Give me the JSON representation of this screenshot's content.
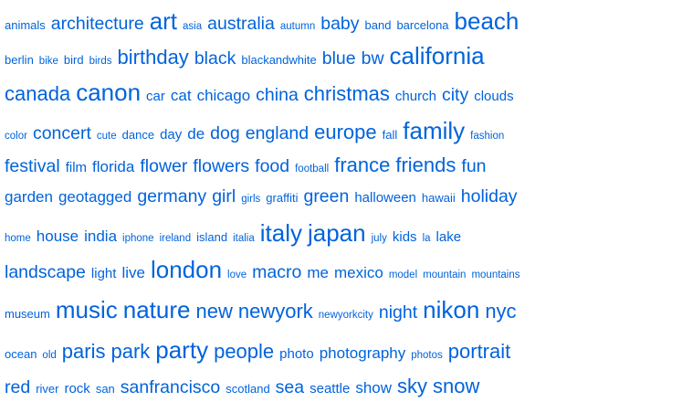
{
  "colors": {
    "tag": "#0063DC",
    "background": "#ffffff"
  },
  "tag_lines": [
    [
      {
        "label": "animals",
        "size": 2
      },
      {
        "label": "architecture",
        "size": 5
      },
      {
        "label": "art",
        "size": 7
      },
      {
        "label": "asia",
        "size": 1
      },
      {
        "label": "australia",
        "size": 5
      },
      {
        "label": "autumn",
        "size": 1
      },
      {
        "label": "baby",
        "size": 5
      },
      {
        "label": "band",
        "size": 2
      },
      {
        "label": "barcelona",
        "size": 2
      },
      {
        "label": "beach",
        "size": 7
      }
    ],
    [
      {
        "label": "berlin",
        "size": 2
      },
      {
        "label": "bike",
        "size": 1
      },
      {
        "label": "bird",
        "size": 2
      },
      {
        "label": "birds",
        "size": 1
      },
      {
        "label": "birthday",
        "size": 6
      },
      {
        "label": "black",
        "size": 5
      },
      {
        "label": "blackandwhite",
        "size": 2
      },
      {
        "label": "blue",
        "size": 5
      },
      {
        "label": "bw",
        "size": 5
      },
      {
        "label": "california",
        "size": 7
      }
    ],
    [
      {
        "label": "canada",
        "size": 6
      },
      {
        "label": "canon",
        "size": 7
      },
      {
        "label": "car",
        "size": 3
      },
      {
        "label": "cat",
        "size": 4
      },
      {
        "label": "chicago",
        "size": 4
      },
      {
        "label": "china",
        "size": 5
      },
      {
        "label": "christmas",
        "size": 6
      },
      {
        "label": "church",
        "size": 3
      },
      {
        "label": "city",
        "size": 5
      },
      {
        "label": "clouds",
        "size": 3
      }
    ],
    [
      {
        "label": "color",
        "size": 1
      },
      {
        "label": "concert",
        "size": 5
      },
      {
        "label": "cute",
        "size": 1
      },
      {
        "label": "dance",
        "size": 2
      },
      {
        "label": "day",
        "size": 3
      },
      {
        "label": "de",
        "size": 4
      },
      {
        "label": "dog",
        "size": 5
      },
      {
        "label": "england",
        "size": 5
      },
      {
        "label": "europe",
        "size": 6
      },
      {
        "label": "fall",
        "size": 2
      },
      {
        "label": "family",
        "size": 7
      },
      {
        "label": "fashion",
        "size": 1
      }
    ],
    [
      {
        "label": "festival",
        "size": 5
      },
      {
        "label": "film",
        "size": 3
      },
      {
        "label": "florida",
        "size": 4
      },
      {
        "label": "flower",
        "size": 5
      },
      {
        "label": "flowers",
        "size": 5
      },
      {
        "label": "food",
        "size": 5
      },
      {
        "label": "football",
        "size": 1
      },
      {
        "label": "france",
        "size": 6
      },
      {
        "label": "friends",
        "size": 6
      },
      {
        "label": "fun",
        "size": 5
      }
    ],
    [
      {
        "label": "garden",
        "size": 4
      },
      {
        "label": "geotagged",
        "size": 4
      },
      {
        "label": "germany",
        "size": 5
      },
      {
        "label": "girl",
        "size": 5
      },
      {
        "label": "girls",
        "size": 1
      },
      {
        "label": "graffiti",
        "size": 2
      },
      {
        "label": "green",
        "size": 5
      },
      {
        "label": "halloween",
        "size": 3
      },
      {
        "label": "hawaii",
        "size": 2
      },
      {
        "label": "holiday",
        "size": 5
      }
    ],
    [
      {
        "label": "home",
        "size": 1
      },
      {
        "label": "house",
        "size": 4
      },
      {
        "label": "india",
        "size": 4
      },
      {
        "label": "iphone",
        "size": 1
      },
      {
        "label": "ireland",
        "size": 1
      },
      {
        "label": "island",
        "size": 2
      },
      {
        "label": "italia",
        "size": 1
      },
      {
        "label": "italy",
        "size": 7
      },
      {
        "label": "japan",
        "size": 7
      },
      {
        "label": "july",
        "size": 1
      },
      {
        "label": "kids",
        "size": 3
      },
      {
        "label": "la",
        "size": 1
      },
      {
        "label": "lake",
        "size": 3
      }
    ],
    [
      {
        "label": "landscape",
        "size": 5
      },
      {
        "label": "light",
        "size": 3
      },
      {
        "label": "live",
        "size": 4
      },
      {
        "label": "london",
        "size": 7
      },
      {
        "label": "love",
        "size": 1
      },
      {
        "label": "macro",
        "size": 5
      },
      {
        "label": "me",
        "size": 4
      },
      {
        "label": "mexico",
        "size": 4
      },
      {
        "label": "model",
        "size": 1
      },
      {
        "label": "mountain",
        "size": 1
      },
      {
        "label": "mountains",
        "size": 1
      }
    ],
    [
      {
        "label": "museum",
        "size": 2
      },
      {
        "label": "music",
        "size": 7
      },
      {
        "label": "nature",
        "size": 7
      },
      {
        "label": "new",
        "size": 6
      },
      {
        "label": "newyork",
        "size": 6
      },
      {
        "label": "newyorkcity",
        "size": 1
      },
      {
        "label": "night",
        "size": 5
      },
      {
        "label": "nikon",
        "size": 7
      },
      {
        "label": "nyc",
        "size": 6
      }
    ],
    [
      {
        "label": "ocean",
        "size": 2
      },
      {
        "label": "old",
        "size": 1
      },
      {
        "label": "paris",
        "size": 6
      },
      {
        "label": "park",
        "size": 6
      },
      {
        "label": "party",
        "size": 7
      },
      {
        "label": "people",
        "size": 6
      },
      {
        "label": "photo",
        "size": 3
      },
      {
        "label": "photography",
        "size": 4
      },
      {
        "label": "photos",
        "size": 1
      },
      {
        "label": "portrait",
        "size": 6
      }
    ],
    [
      {
        "label": "red",
        "size": 5
      },
      {
        "label": "river",
        "size": 2
      },
      {
        "label": "rock",
        "size": 3
      },
      {
        "label": "san",
        "size": 2
      },
      {
        "label": "sanfrancisco",
        "size": 5
      },
      {
        "label": "scotland",
        "size": 2
      },
      {
        "label": "sea",
        "size": 5
      },
      {
        "label": "seattle",
        "size": 3
      },
      {
        "label": "show",
        "size": 4
      },
      {
        "label": "sky",
        "size": 6
      },
      {
        "label": "snow",
        "size": 6
      }
    ]
  ]
}
